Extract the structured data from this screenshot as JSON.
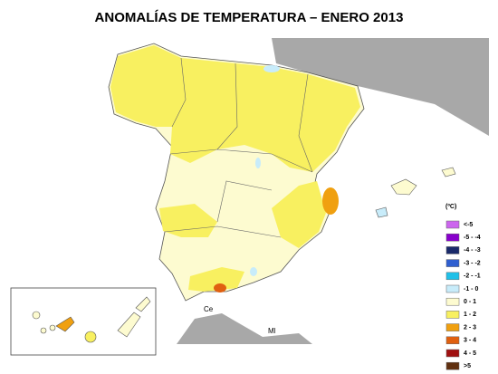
{
  "title": "ANOMALÍAS DE TEMPERATURA – ENERO 2013",
  "legend": {
    "unit": "(ºC)",
    "items": [
      {
        "label": "<-5",
        "color": "#cc66ee"
      },
      {
        "label": "-5 - -4",
        "color": "#8800cc"
      },
      {
        "label": "-4 - -3",
        "color": "#1a2a6a"
      },
      {
        "label": "-3 - -2",
        "color": "#2f5fd0"
      },
      {
        "label": "-2 - -1",
        "color": "#20c0e8"
      },
      {
        "label": "-1 - 0",
        "color": "#c8ecfa"
      },
      {
        "label": "0 - 1",
        "color": "#fdfbd0"
      },
      {
        "label": "1 - 2",
        "color": "#f8f060"
      },
      {
        "label": "2 - 3",
        "color": "#f0a010"
      },
      {
        "label": "3 - 4",
        "color": "#e06010"
      },
      {
        "label": "4 - 5",
        "color": "#a01010"
      },
      {
        "label": ">5",
        "color": "#603010"
      }
    ]
  },
  "places": [
    "Ce",
    "Ml"
  ]
}
